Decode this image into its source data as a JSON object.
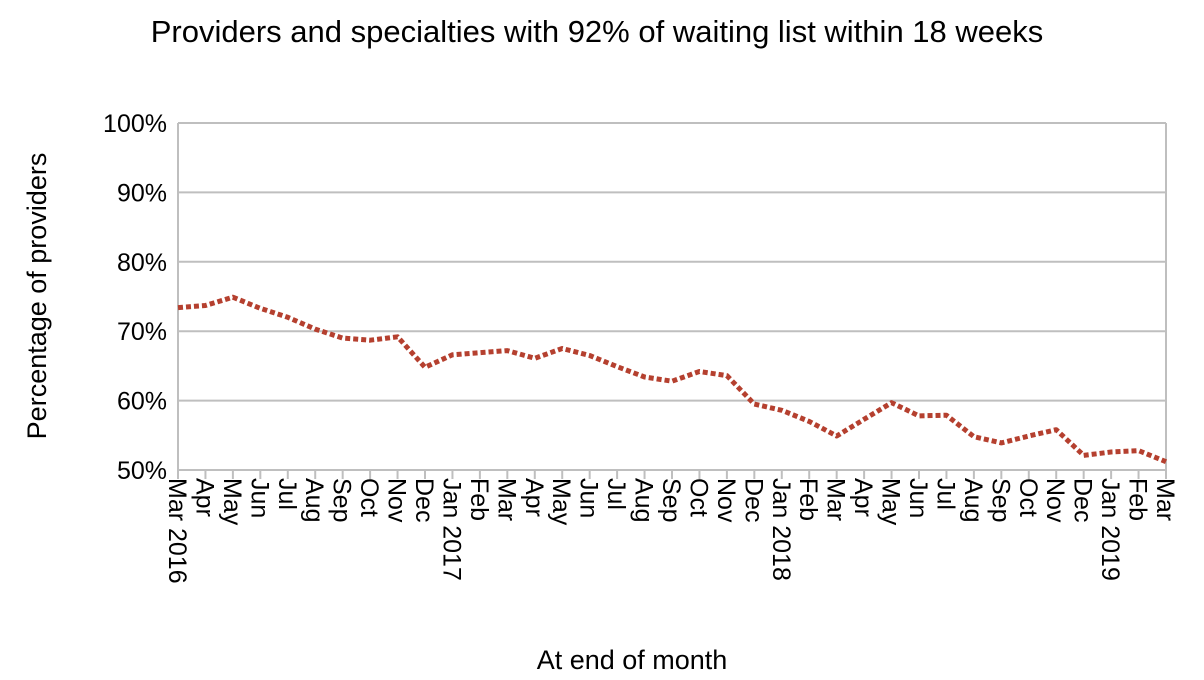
{
  "chart_data": {
    "type": "line",
    "title": "Providers and specialties with 92% of waiting list within 18 weeks",
    "xlabel": "At end of month",
    "ylabel": "Percentage of providers",
    "ylim": [
      0.5,
      1.0
    ],
    "yticks": [
      "50%",
      "60%",
      "70%",
      "80%",
      "90%",
      "100%"
    ],
    "ytick_values": [
      0.5,
      0.6,
      0.7,
      0.8,
      0.9,
      1.0
    ],
    "grid": true,
    "categories": [
      "Mar 2016",
      "Apr",
      "May",
      "Jun",
      "Jul",
      "Aug",
      "Sep",
      "Oct",
      "Nov",
      "Dec",
      "Jan 2017",
      "Feb",
      "Mar",
      "Apr",
      "May",
      "Jun",
      "Jul",
      "Aug",
      "Sep",
      "Oct",
      "Nov",
      "Dec",
      "Jan 2018",
      "Feb",
      "Mar",
      "Apr",
      "May",
      "Jun",
      "Jul",
      "Aug",
      "Sep",
      "Oct",
      "Nov",
      "Dec",
      "Jan 2019",
      "Feb",
      "Mar"
    ],
    "series": [
      {
        "values": [
          0.734,
          0.737,
          0.749,
          0.733,
          0.72,
          0.703,
          0.69,
          0.687,
          0.692,
          0.648,
          0.666,
          0.669,
          0.672,
          0.661,
          0.675,
          0.665,
          0.649,
          0.634,
          0.628,
          0.642,
          0.636,
          0.595,
          0.586,
          0.57,
          0.549,
          0.573,
          0.597,
          0.578,
          0.579,
          0.548,
          0.539,
          0.549,
          0.558,
          0.521,
          0.526,
          0.528,
          0.512
        ],
        "color": "#b5402f"
      }
    ]
  }
}
